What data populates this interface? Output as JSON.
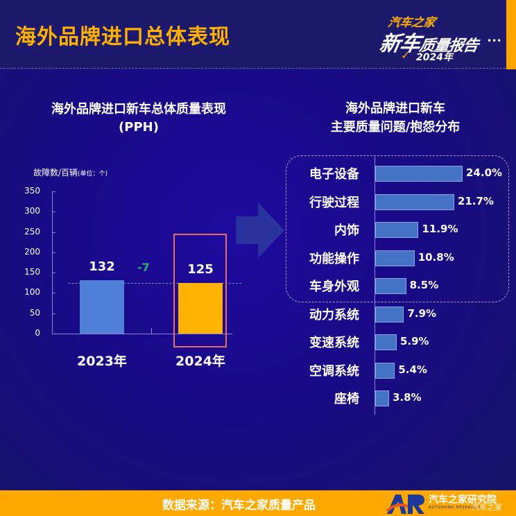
{
  "header": {
    "title": "海外品牌进口总体表现",
    "brand": {
      "top": "汽车之家",
      "main_big": "新车",
      "main_small": "质量报告",
      "year": "2024年",
      "accent_color": "#ffb000"
    }
  },
  "left_chart": {
    "title_line1": "海外品牌进口新车总体质量表现",
    "title_line2": "(PPH)",
    "y_unit": "故障数/百辆",
    "y_unit_note": "(单位：个)",
    "diff_label": "-7",
    "diff_color": "#28b36a"
  },
  "right_chart": {
    "title_line1": "海外品牌进口新车",
    "title_line2": "主要质量问题/抱怨分布"
  },
  "footer": {
    "source": "数据来源：汽车之家质量产品",
    "logo_text": "汽车之家研究院",
    "logo_sub": "AUTOHOME RESEARCH",
    "watermark": "汽车之家"
  },
  "chart_data": [
    {
      "type": "bar",
      "title": "海外品牌进口新车总体质量表现 (PPH)",
      "ylabel": "故障数/百辆 (单位：个)",
      "xlabel": "",
      "categories": [
        "2023年",
        "2024年"
      ],
      "values": [
        132,
        125
      ],
      "value_labels": [
        "132",
        "125"
      ],
      "colors": [
        "#4f7fd6",
        "#ffb300"
      ],
      "ylim": [
        0,
        350
      ],
      "yticks": [
        0,
        50,
        100,
        150,
        200,
        250,
        300,
        350
      ],
      "annotation": "-7",
      "highlight": "2024年",
      "grid": false
    },
    {
      "type": "bar",
      "orientation": "horizontal",
      "title": "海外品牌进口新车 主要质量问题/抱怨分布",
      "categories": [
        "电子设备",
        "行驶过程",
        "内饰",
        "功能操作",
        "车身外观",
        "动力系统",
        "变速系统",
        "空调系统",
        "座椅"
      ],
      "values": [
        24.0,
        21.7,
        11.9,
        10.8,
        8.5,
        7.9,
        5.9,
        5.4,
        3.8
      ],
      "value_labels": [
        "24.0%",
        "21.7%",
        "11.9%",
        "10.8%",
        "8.5%",
        "7.9%",
        "5.9%",
        "5.4%",
        "3.8%"
      ],
      "unit": "%",
      "highlighted_group": [
        "电子设备",
        "行驶过程",
        "内饰",
        "功能操作",
        "车身外观"
      ],
      "bar_color": "#4472c4",
      "grid": false
    }
  ]
}
